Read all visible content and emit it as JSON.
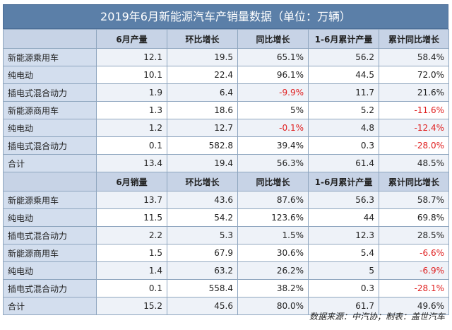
{
  "title": "2019年6月新能源汽车产销量数据（单位：万辆）",
  "production": {
    "headers": [
      "",
      "6月产量",
      "环比增长",
      "同比增长",
      "1-6月累计产量",
      "累计同比增长"
    ],
    "rows": [
      [
        "新能源乘用车",
        "12.1",
        "19.5",
        "65.1%",
        "56.2",
        "58.4%"
      ],
      [
        "纯电动",
        "10.1",
        "22.4",
        "96.1%",
        "44.5",
        "72.0%"
      ],
      [
        "插电式混合动力",
        "1.9",
        "6.4",
        "-9.9%",
        "11.7",
        "21.6%"
      ],
      [
        "新能源商用车",
        "1.3",
        "18.6",
        "5%",
        "5.2",
        "-11.6%"
      ],
      [
        "纯电动",
        "1.2",
        "12.7",
        "-0.1%",
        "4.8",
        "-12.4%"
      ],
      [
        "插电式混合动力",
        "0.1",
        "582.8",
        "39.4%",
        "0.3",
        "-28.0%"
      ],
      [
        "合计",
        "13.4",
        "19.4",
        "56.3%",
        "61.4",
        "48.5%"
      ]
    ]
  },
  "sales": {
    "headers": [
      "",
      "6月销量",
      "环比增长",
      "同比增长",
      "1-6月累计产量",
      "累计同比增长"
    ],
    "rows": [
      [
        "新能源乘用车",
        "13.7",
        "43.6",
        "87.6%",
        "56.3",
        "58.7%"
      ],
      [
        "纯电动",
        "11.5",
        "54.2",
        "123.6%",
        "44",
        "69.8%"
      ],
      [
        "插电式混合动力",
        "2.2",
        "5.3",
        "1.5%",
        "12.3",
        "28.5%"
      ],
      [
        "新能源商用车",
        "1.5",
        "67.9",
        "30.6%",
        "5.4",
        "-6.6%"
      ],
      [
        "纯电动",
        "1.4",
        "63.2",
        "26.2%",
        "5",
        "-6.9%"
      ],
      [
        "插电式混合动力",
        "0.1",
        "558.4",
        "38.2%",
        "0.3",
        "-28.1%"
      ],
      [
        "合计",
        "15.2",
        "45.6",
        "80.0%",
        "61.7",
        "49.6%"
      ]
    ]
  },
  "source_note": "数据来源：中汽协；制表：盖世汽车",
  "colors": {
    "title_bg": "#5b7fa8",
    "header_bg": "#c7d3e6",
    "label_bg": "#d3deee",
    "negative": "#e02020"
  }
}
